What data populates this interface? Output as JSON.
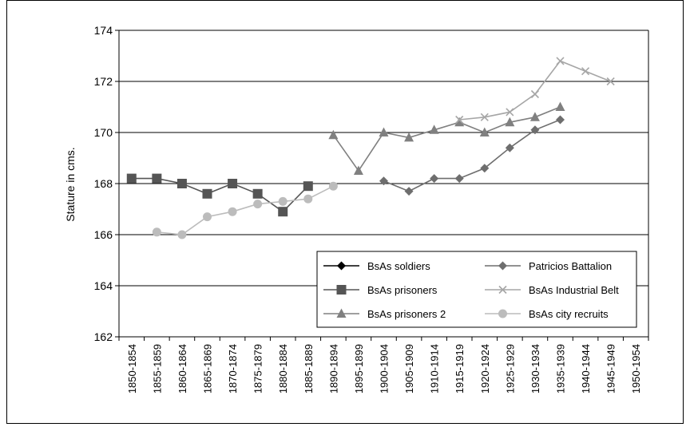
{
  "chart_data": {
    "type": "line",
    "title": "",
    "xlabel": "",
    "ylabel": "Stature in cms.",
    "ylim": [
      162,
      174
    ],
    "yticks": [
      162,
      164,
      166,
      168,
      170,
      172,
      174
    ],
    "grid": true,
    "legend_position": "bottom-right",
    "categories": [
      "1850-1854",
      "1855-1859",
      "1860-1864",
      "1865-1869",
      "1870-1874",
      "1875-1879",
      "1880-1884",
      "1885-1889",
      "1890-1894",
      "1895-1899",
      "1900-1904",
      "1905-1909",
      "1910-1914",
      "1915-1919",
      "1920-1924",
      "1925-1929",
      "1930-1934",
      "1935-1939",
      "1940-1944",
      "1945-1949",
      "1950-1954"
    ],
    "series": [
      {
        "name": "BsAs soldiers",
        "color": "#000000",
        "marker": "diamond",
        "values": [
          null,
          null,
          null,
          null,
          null,
          null,
          null,
          null,
          null,
          null,
          null,
          null,
          null,
          null,
          null,
          null,
          null,
          null,
          null,
          null,
          null
        ]
      },
      {
        "name": "BsAs prisoners",
        "color": "#555555",
        "marker": "square",
        "values": [
          168.2,
          168.2,
          168.0,
          167.6,
          168.0,
          167.6,
          166.9,
          167.9,
          null,
          null,
          null,
          null,
          null,
          null,
          null,
          null,
          null,
          null,
          null,
          null,
          null
        ]
      },
      {
        "name": "BsAs prisoners 2",
        "color": "#808080",
        "marker": "triangle",
        "values": [
          null,
          null,
          null,
          null,
          null,
          null,
          null,
          null,
          169.9,
          168.5,
          170.0,
          169.8,
          170.1,
          170.4,
          170.0,
          170.4,
          170.6,
          171.0,
          null,
          null,
          null
        ]
      },
      {
        "name": "Patricios Battalion",
        "color": "#6e6e6e",
        "marker": "diamond",
        "values": [
          null,
          null,
          null,
          null,
          null,
          null,
          null,
          null,
          null,
          null,
          168.1,
          167.7,
          168.2,
          168.2,
          168.6,
          169.4,
          170.1,
          170.5,
          null,
          null,
          null
        ]
      },
      {
        "name": "BsAs Industrial Belt",
        "color": "#a6a6a6",
        "marker": "x",
        "values": [
          null,
          null,
          null,
          null,
          null,
          null,
          null,
          null,
          null,
          null,
          null,
          null,
          null,
          170.5,
          170.6,
          170.8,
          171.5,
          172.8,
          172.4,
          172.0,
          null
        ]
      },
      {
        "name": "BsAs city recruits",
        "color": "#bcbcbc",
        "marker": "circle",
        "values": [
          null,
          166.1,
          166.0,
          166.7,
          166.9,
          167.2,
          167.3,
          167.4,
          167.9,
          null,
          null,
          null,
          null,
          null,
          null,
          null,
          null,
          null,
          null,
          null,
          null
        ]
      }
    ]
  }
}
